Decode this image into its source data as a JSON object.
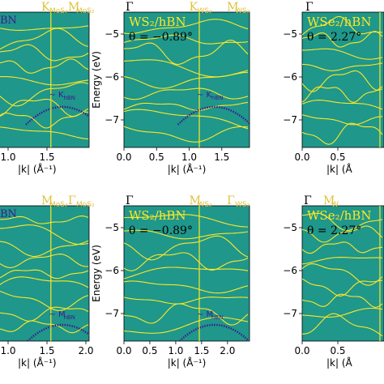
{
  "colors": {
    "background": "#1f978b",
    "band": "#fde725",
    "hbn_band": "#3b1c8c",
    "symmetry_label": "#dfc23a",
    "text_on_plot": "#fde725",
    "axis_text": "#000000"
  },
  "ylabel": "Energy (eV)",
  "xlabel_frag": "|k| (Å⁻¹)",
  "xlabel_full": "|k| (Å⁻¹)",
  "panels": [
    {
      "id": "mos2-K",
      "top_labels": [
        "K",
        "M"
      ],
      "top_label_subs": [
        "MoS₂",
        "MoS₂"
      ],
      "inplot_text": "BN",
      "annotation": "∼ K",
      "annotation_sub": "hBN",
      "xticks": [
        "1.0",
        "1.5"
      ],
      "xlabel": "|k| (Å⁻¹)"
    },
    {
      "id": "ws2-K",
      "top_labels": [
        "Γ",
        "K",
        "M"
      ],
      "top_label_subs": [
        "",
        "WS₂",
        "WS₂"
      ],
      "material": "WS₂/hBN",
      "theta": "θ = −0.89°",
      "annotation": "∼ K",
      "annotation_sub": "hBN",
      "xticks": [
        "0.0",
        "0.5",
        "1.0",
        "1.5"
      ],
      "yticks": [
        "−5",
        "−6",
        "−7"
      ],
      "xlabel": "|k| (Å⁻¹)"
    },
    {
      "id": "wse2-K",
      "top_labels": [
        "Γ"
      ],
      "material": "WSe₂/hBN",
      "theta": "θ = 2.27°",
      "xticks": [
        "0.0",
        "0.5"
      ],
      "yticks": [
        "−5",
        "−6",
        "−7"
      ],
      "xlabel": "|k| (Å"
    },
    {
      "id": "mos2-M",
      "top_labels": [
        "M",
        "Γ"
      ],
      "top_label_subs": [
        "MoS₂",
        "MoS₂"
      ],
      "inplot_text": "BN",
      "annotation": "∼ M",
      "annotation_sub": "hBN",
      "xticks": [
        "1.0",
        "1.5",
        "2.0"
      ],
      "xlabel": "|k| (Å⁻¹)"
    },
    {
      "id": "ws2-M",
      "top_labels": [
        "Γ",
        "M",
        "Γ"
      ],
      "top_label_subs": [
        "",
        "WS₂",
        "WS₂"
      ],
      "material": "WS₂/hBN",
      "theta": "θ = −0.89°",
      "annotation": "∼ M",
      "annotation_sub": "hBN",
      "xticks": [
        "0.0",
        "0.5",
        "1.0",
        "1.5",
        "2.0"
      ],
      "yticks": [
        "−5",
        "−6",
        "−7"
      ],
      "xlabel": "|k| (Å⁻¹)"
    },
    {
      "id": "wse2-M",
      "top_labels": [
        "Γ",
        "M"
      ],
      "top_label_subs": [
        "",
        "W"
      ],
      "material": "WSe₂/hBN",
      "theta": "θ = 2.27°",
      "xticks": [
        "0.0",
        "0.5"
      ],
      "yticks": [
        "−5",
        "−6",
        "−7"
      ],
      "xlabel": "|k| (Å"
    }
  ]
}
